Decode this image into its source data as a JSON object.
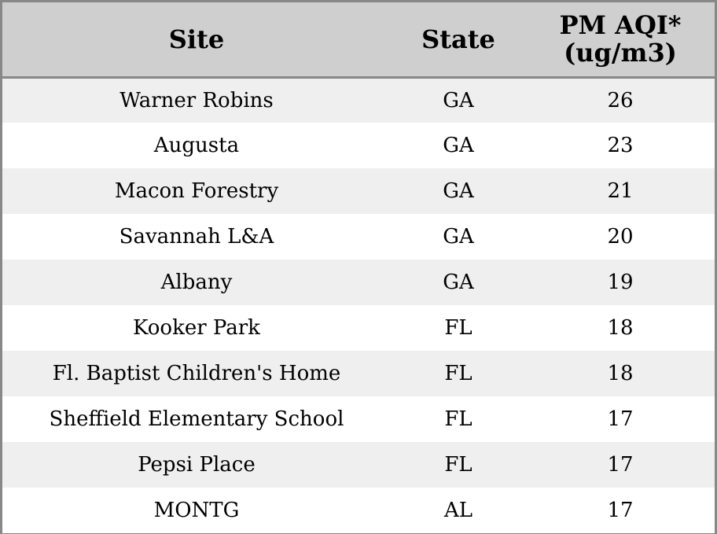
{
  "table": {
    "headers": {
      "site": "Site",
      "state": "State",
      "pm": "PM AQI*\n(ug/m3)"
    },
    "rows": [
      {
        "site": "Warner Robins",
        "state": "GA",
        "pm": "26"
      },
      {
        "site": "Augusta",
        "state": "GA",
        "pm": "23"
      },
      {
        "site": "Macon Forestry",
        "state": "GA",
        "pm": "21"
      },
      {
        "site": "Savannah L&A",
        "state": "GA",
        "pm": "20"
      },
      {
        "site": "Albany",
        "state": "GA",
        "pm": "19"
      },
      {
        "site": "Kooker Park",
        "state": "FL",
        "pm": "18"
      },
      {
        "site": "Fl. Baptist Children's Home",
        "state": "FL",
        "pm": "18"
      },
      {
        "site": "Sheffield Elementary School",
        "state": "FL",
        "pm": "17"
      },
      {
        "site": "Pepsi Place",
        "state": "FL",
        "pm": "17"
      },
      {
        "site": "MONTG",
        "state": "AL",
        "pm": "17"
      }
    ]
  },
  "colors": {
    "header_bg": "#cfcfcf",
    "stripe_bg": "#efefef",
    "border": "#888888"
  }
}
